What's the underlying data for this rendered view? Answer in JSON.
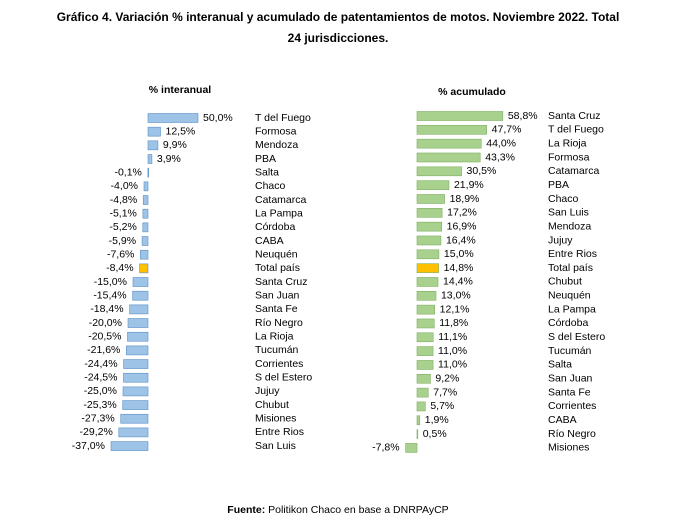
{
  "title": "Gráfico 4. Variación % interanual y acumulado de patentamientos de motos. Noviembre 2022. Total",
  "title_line2": "24 jurisdicciones.",
  "source_label": "Fuente:",
  "source": "Politikon Chaco en base a DNRPAyCP",
  "chart_data": [
    {
      "type": "hbar",
      "title": "% interanual",
      "categories": [
        "T del Fuego",
        "Formosa",
        "Mendoza",
        "PBA",
        "Salta",
        "Chaco",
        "Catamarca",
        "La Pampa",
        "Córdoba",
        "CABA",
        "Neuquén",
        "Total país",
        "Santa Cruz",
        "San Juan",
        "Santa Fe",
        "Río Negro",
        "La Rioja",
        "Tucumán",
        "Corrientes",
        "S del Estero",
        "Jujuy",
        "Chubut",
        "Misiones",
        "Entre Rios",
        "San Luis"
      ],
      "values": [
        50.0,
        12.5,
        9.9,
        3.9,
        -0.1,
        -4.0,
        -4.8,
        -5.1,
        -5.2,
        -5.9,
        -7.6,
        -8.4,
        -15.0,
        -15.4,
        -18.4,
        -20.0,
        -20.5,
        -21.6,
        -24.4,
        -24.5,
        -25.0,
        -25.3,
        -27.3,
        -29.2,
        -37.0
      ],
      "value_labels": [
        "50,0%",
        "12,5%",
        "9,9%",
        "3,9%",
        "-0,1%",
        "-4,0%",
        "-4,8%",
        "-5,1%",
        "-5,2%",
        "-5,9%",
        "-7,6%",
        "-8,4%",
        "-15,0%",
        "-15,4%",
        "-18,4%",
        "-20,0%",
        "-20,5%",
        "-21,6%",
        "-24,4%",
        "-24,5%",
        "-25,0%",
        "-25,3%",
        "-27,3%",
        "-29,2%",
        "-37,0%"
      ],
      "color": "#9dc3e6",
      "stroke": "#5b8fc7",
      "colors": [
        "#9dc3e6",
        "#9dc3e6",
        "#9dc3e6",
        "#9dc3e6",
        "#9dc3e6",
        "#9dc3e6",
        "#9dc3e6",
        "#9dc3e6",
        "#9dc3e6",
        "#9dc3e6",
        "#9dc3e6",
        "#ffc000",
        "#9dc3e6",
        "#9dc3e6",
        "#9dc3e6",
        "#9dc3e6",
        "#9dc3e6",
        "#9dc3e6",
        "#9dc3e6",
        "#9dc3e6",
        "#9dc3e6",
        "#9dc3e6",
        "#9dc3e6",
        "#9dc3e6",
        "#9dc3e6"
      ]
    },
    {
      "type": "hbar",
      "title": "% acumulado",
      "categories": [
        "Santa Cruz",
        "T del Fuego",
        "La Rioja",
        "Formosa",
        "Catamarca",
        "PBA",
        "Chaco",
        "San Luis",
        "Mendoza",
        "Jujuy",
        "Entre Rios",
        "Total país",
        "Chubut",
        "Neuquén",
        "La Pampa",
        "Córdoba",
        "S del Estero",
        "Tucumán",
        "Salta",
        "San Juan",
        "Santa Fe",
        "Corrientes",
        "CABA",
        "Río Negro",
        "Misiones"
      ],
      "values": [
        58.8,
        47.7,
        44.0,
        43.3,
        30.5,
        21.9,
        18.9,
        17.2,
        16.9,
        16.4,
        15.0,
        14.8,
        14.4,
        13.0,
        12.1,
        11.8,
        11.1,
        11.0,
        11.0,
        9.2,
        7.7,
        5.7,
        1.9,
        0.5,
        -7.8
      ],
      "value_labels": [
        "58,8%",
        "47,7%",
        "44,0%",
        "43,3%",
        "30,5%",
        "21,9%",
        "18,9%",
        "17,2%",
        "16,9%",
        "16,4%",
        "15,0%",
        "14,8%",
        "14,4%",
        "13,0%",
        "12,1%",
        "11,8%",
        "11,1%",
        "11,0%",
        "11,0%",
        "9,2%",
        "7,7%",
        "5,7%",
        "1,9%",
        "0,5%",
        "-7,8%"
      ],
      "color": "#a9d18e",
      "stroke": "#7fae63",
      "colors": [
        "#a9d18e",
        "#a9d18e",
        "#a9d18e",
        "#a9d18e",
        "#a9d18e",
        "#a9d18e",
        "#a9d18e",
        "#a9d18e",
        "#a9d18e",
        "#a9d18e",
        "#a9d18e",
        "#ffc000",
        "#a9d18e",
        "#a9d18e",
        "#a9d18e",
        "#a9d18e",
        "#a9d18e",
        "#a9d18e",
        "#a9d18e",
        "#a9d18e",
        "#a9d18e",
        "#a9d18e",
        "#a9d18e",
        "#a9d18e",
        "#a9d18e"
      ]
    }
  ]
}
